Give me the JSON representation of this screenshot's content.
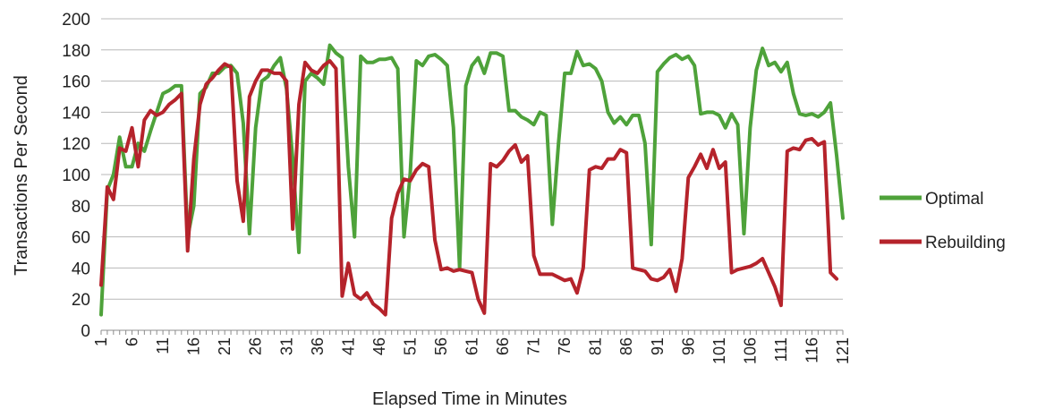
{
  "chart_data": {
    "type": "line",
    "title": "",
    "xlabel": "Elapsed Time in Minutes",
    "ylabel": "Transactions Per Second",
    "ylim": [
      0,
      200
    ],
    "yticks": [
      0,
      20,
      40,
      60,
      80,
      100,
      120,
      140,
      160,
      180,
      200
    ],
    "xlim": [
      1,
      121
    ],
    "xtick_labels": [
      "1",
      "6",
      "11",
      "16",
      "21",
      "26",
      "31",
      "36",
      "41",
      "46",
      "51",
      "56",
      "61",
      "66",
      "71",
      "76",
      "81",
      "86",
      "91",
      "96",
      "101",
      "106",
      "111",
      "116",
      "121"
    ],
    "grid": "horizontal",
    "legend_position": "right",
    "series": [
      {
        "name": "Optimal",
        "color": "#4ea23a",
        "values": [
          10,
          90,
          100,
          124,
          105,
          105,
          120,
          115,
          128,
          140,
          152,
          154,
          157,
          157,
          60,
          80,
          152,
          156,
          165,
          165,
          169,
          170,
          165,
          133,
          62,
          130,
          160,
          163,
          170,
          175,
          155,
          110,
          50,
          160,
          165,
          162,
          158,
          183,
          178,
          175,
          105,
          60,
          176,
          172,
          172,
          174,
          174,
          175,
          168,
          60,
          100,
          173,
          170,
          176,
          177,
          174,
          170,
          130,
          40,
          157,
          170,
          175,
          165,
          178,
          178,
          176,
          141,
          141,
          137,
          135,
          132,
          140,
          138,
          68,
          120,
          165,
          165,
          179,
          170,
          171,
          168,
          160,
          140,
          133,
          137,
          132,
          138,
          138,
          120,
          55,
          166,
          171,
          175,
          177,
          174,
          176,
          170,
          139,
          140,
          140,
          138,
          130,
          139,
          132,
          62,
          130,
          167,
          181,
          170,
          172,
          166,
          172,
          152,
          139,
          138,
          139,
          137,
          140,
          146,
          112,
          72
        ]
      },
      {
        "name": "Rebuilding",
        "color": "#b5232b",
        "values": [
          29,
          92,
          84,
          117,
          115,
          130,
          105,
          135,
          141,
          138,
          140,
          145,
          148,
          152,
          51,
          110,
          145,
          158,
          162,
          167,
          171,
          169,
          96,
          70,
          150,
          160,
          167,
          167,
          165,
          165,
          160,
          65,
          145,
          172,
          167,
          165,
          170,
          173,
          168,
          22,
          43,
          23,
          20,
          24,
          17,
          14,
          10,
          72,
          88,
          97,
          96,
          103,
          107,
          105,
          58,
          39,
          40,
          38,
          39,
          38,
          37,
          20,
          11,
          107,
          105,
          109,
          115,
          119,
          108,
          112,
          48,
          36,
          36,
          36,
          34,
          32,
          33,
          24,
          40,
          103,
          105,
          104,
          110,
          110,
          116,
          114,
          40,
          39,
          38,
          33,
          32,
          34,
          39,
          25,
          46,
          98,
          105,
          113,
          104,
          116,
          104,
          108,
          37,
          39,
          40,
          41,
          43,
          46,
          37,
          28,
          16,
          115,
          117,
          116,
          122,
          123,
          119,
          121,
          37,
          33
        ]
      }
    ]
  }
}
